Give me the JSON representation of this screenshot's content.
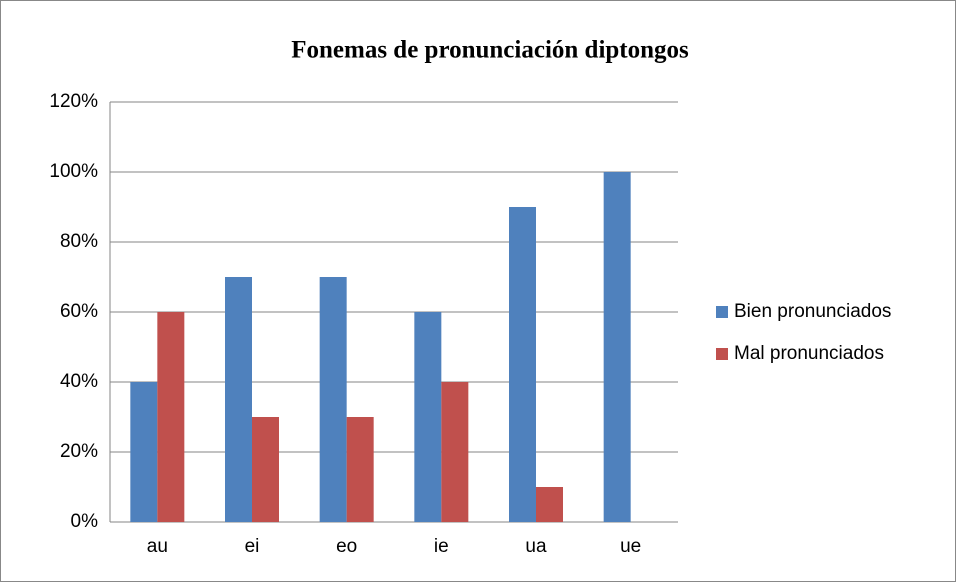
{
  "chart_data": {
    "type": "bar",
    "title": "Fonemas de pronunciación diptongos",
    "categories": [
      "au",
      "ei",
      "eo",
      "ie",
      "ua",
      "ue"
    ],
    "series": [
      {
        "name": "Bien pronunciados",
        "color": "#4f81bd",
        "values": [
          40,
          70,
          70,
          60,
          90,
          100
        ]
      },
      {
        "name": "Mal pronunciados",
        "color": "#c0504d",
        "values": [
          60,
          30,
          30,
          40,
          10,
          0
        ]
      }
    ],
    "ylim": [
      0,
      120
    ],
    "yticks": [
      {
        "value": 0,
        "label": "0%"
      },
      {
        "value": 20,
        "label": "20%"
      },
      {
        "value": 40,
        "label": "40%"
      },
      {
        "value": 60,
        "label": "60%"
      },
      {
        "value": 80,
        "label": "80%"
      },
      {
        "value": 100,
        "label": "100%"
      },
      {
        "value": 120,
        "label": "120%"
      }
    ],
    "grid": true,
    "legend": "right"
  }
}
